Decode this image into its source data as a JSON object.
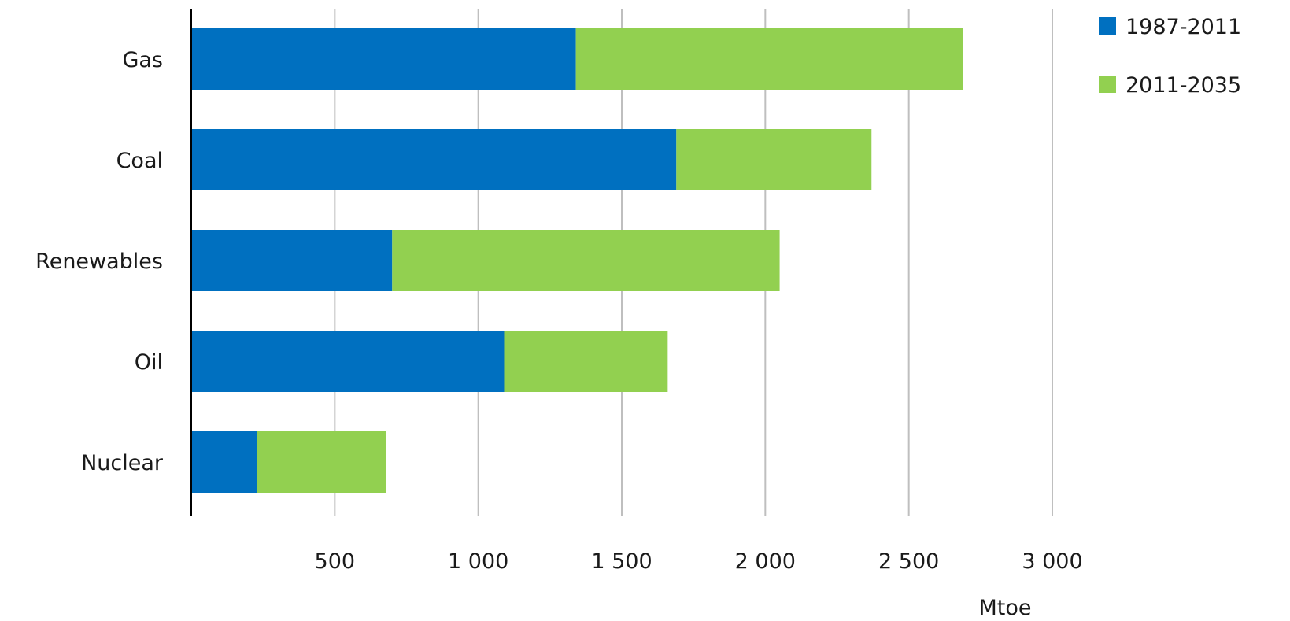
{
  "chart_data": {
    "type": "bar",
    "orientation": "horizontal",
    "stacked": true,
    "categories": [
      "Gas",
      "Coal",
      "Renewables",
      "Oil",
      "Nuclear"
    ],
    "series": [
      {
        "name": "1987-2011",
        "color": "#0070C0",
        "values": [
          1340,
          1690,
          700,
          1090,
          230
        ]
      },
      {
        "name": "2011-2035",
        "color": "#92D050",
        "values": [
          1350,
          680,
          1350,
          570,
          450
        ]
      }
    ],
    "xticks": [
      "500",
      "1 000",
      "1 500",
      "2 000",
      "2 500",
      "3 000"
    ],
    "xtick_values": [
      500,
      1000,
      1500,
      2000,
      2500,
      3000
    ],
    "xlim": [
      0,
      3000
    ],
    "xlabel": "Mtoe",
    "grid": "vertical",
    "legend_position": "top-right"
  }
}
